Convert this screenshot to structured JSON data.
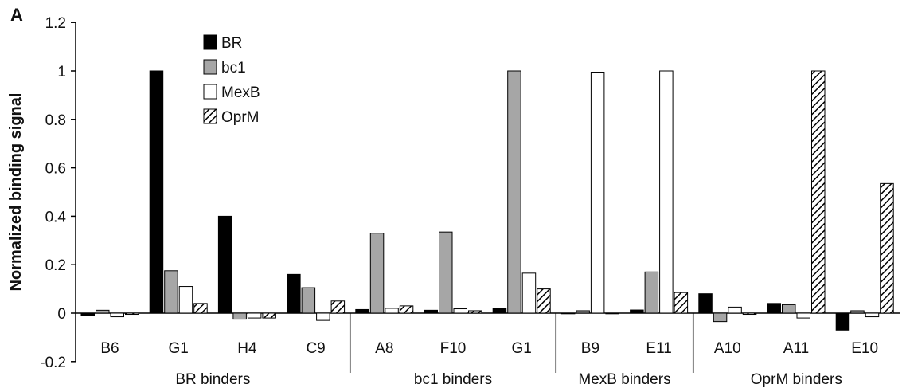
{
  "panel_label": "A",
  "colors": {
    "BR": "#000000",
    "bc1": "#a6a6a6",
    "MexB": "#ffffff",
    "OprM": "hatch",
    "stroke": "#000000"
  },
  "chart_data": {
    "type": "bar",
    "title": "",
    "xlabel": "",
    "ylabel": "Normalized binding signal",
    "ylim": [
      -0.2,
      1.2
    ],
    "yticks": [
      "-0.2",
      "0",
      "0.2",
      "0.4",
      "0.6",
      "0.8",
      "1",
      "1.2"
    ],
    "grid": false,
    "legend_placement": "top-left",
    "categories": [
      "B6",
      "G1",
      "H4",
      "C9",
      "A8",
      "F10",
      "G1",
      "B9",
      "E11",
      "A10",
      "A11",
      "E10"
    ],
    "groups": [
      {
        "label": "BR binders",
        "start": 0,
        "end": 3
      },
      {
        "label": "bc1 binders",
        "start": 4,
        "end": 6
      },
      {
        "label": "MexB binders",
        "start": 7,
        "end": 8
      },
      {
        "label": "OprM binders",
        "start": 9,
        "end": 11
      }
    ],
    "series": [
      {
        "name": "BR",
        "values": [
          -0.01,
          1.0,
          0.4,
          0.16,
          0.015,
          0.012,
          0.02,
          0.0,
          0.013,
          0.08,
          0.04,
          -0.07
        ]
      },
      {
        "name": "bc1",
        "values": [
          0.012,
          0.175,
          -0.025,
          0.105,
          0.33,
          0.335,
          1.0,
          0.01,
          0.17,
          -0.035,
          0.035,
          0.01
        ]
      },
      {
        "name": "MexB",
        "values": [
          -0.015,
          0.11,
          -0.02,
          -0.03,
          0.02,
          0.018,
          0.165,
          0.995,
          1.0,
          0.025,
          -0.02,
          -0.015
        ]
      },
      {
        "name": "OprM",
        "values": [
          -0.005,
          0.04,
          -0.02,
          0.05,
          0.03,
          0.01,
          0.1,
          0.0,
          0.085,
          -0.005,
          1.0,
          0.535
        ]
      }
    ]
  }
}
